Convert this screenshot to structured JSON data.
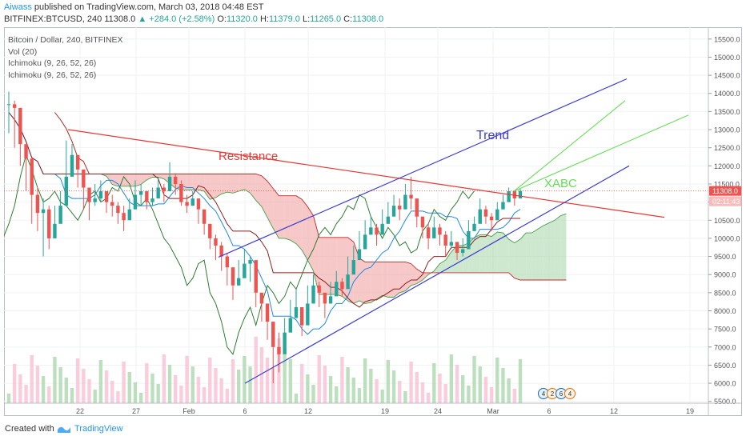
{
  "header": {
    "author": "Aiwass",
    "published": "published on TradingView.com, March 03, 2018 04:48 EST",
    "symbol": "BITFINEX:BTCUSD, 240",
    "last": "11308.0",
    "change": "+284.0 (+2.58%)",
    "o_label": "O:",
    "o": "11320.0",
    "h_label": "H:",
    "h": "11379.0",
    "l_label": "L:",
    "l": "11265.0",
    "c_label": "C:",
    "c": "11308.0"
  },
  "legend": {
    "title": "Bitcoin / Dollar, 240, BITFINEX",
    "vol": "Vol (20)",
    "ichimoku1": "Ichimoku (9, 26, 52, 26)",
    "ichimoku2": "Ichimoku (9, 26, 52, 26)"
  },
  "footer": {
    "created": "Created with",
    "brand": "TradingView"
  },
  "colors": {
    "resistance": "#e53935",
    "trend": "#3f3fd0",
    "xabc": "#66dd55",
    "up": "#26a69a",
    "down": "#ef5350",
    "kumo_bull": "#a5d6a7",
    "kumo_bear": "#ef9a9a",
    "price_label": "#ef5350"
  },
  "chart_data": {
    "type": "candlestick",
    "y_axis": {
      "range": [
        5450,
        15650
      ],
      "ticks": [
        "15500.0",
        "15000.0",
        "14500.0",
        "14000.0",
        "13500.0",
        "13000.0",
        "12500.0",
        "12000.0",
        "11500.0",
        "11000.0",
        "10500.0",
        "10000.0",
        "9500.0",
        "9000.0",
        "8500.0",
        "8000.0",
        "7500.0",
        "7000.0",
        "6500.0",
        "6000.0",
        "5500.0"
      ]
    },
    "x_axis": {
      "ticks": [
        "22",
        "27",
        "Feb",
        "6",
        "12",
        "19",
        "24",
        "Mar",
        "6",
        "12",
        "19"
      ]
    },
    "price_labels": {
      "last": "11308.0",
      "countdown": "02:11:43"
    },
    "annotations": [
      {
        "text": "Resistance",
        "kind": "line",
        "from": [
          "Jan 18",
          13000
        ],
        "to": [
          "Mar 16",
          10550
        ]
      },
      {
        "text": "Trend",
        "kind": "channel-upper",
        "from": [
          "Feb 3",
          9500
        ],
        "to": [
          "Mar 12",
          14400
        ]
      },
      {
        "text": "",
        "kind": "channel-lower",
        "from": [
          "Feb 6",
          6000
        ],
        "to": [
          "Mar 13",
          12000
        ]
      },
      {
        "text": "XABC",
        "kind": "projection",
        "from": [
          "Mar 2",
          11300
        ],
        "to": [
          "Mar 12",
          13800
        ]
      },
      {
        "text": "",
        "kind": "projection",
        "from": [
          "Mar 2",
          11300
        ],
        "to": [
          "Mar 21",
          13400
        ]
      }
    ],
    "events_badge": [
      "4",
      "2",
      "6",
      "4"
    ],
    "price_path": [
      [
        13700,
        14050,
        12900
      ],
      [
        13600,
        13800,
        12500
      ],
      [
        12600,
        12900,
        12000
      ],
      [
        12200,
        12500,
        11300
      ],
      [
        11200,
        11800,
        10400
      ],
      [
        10700,
        11400,
        10200
      ],
      [
        10800,
        11100,
        9500
      ],
      [
        10000,
        10900,
        9700
      ],
      [
        10400,
        10900,
        10200
      ],
      [
        10900,
        11300,
        10500
      ],
      [
        11700,
        12700,
        11500
      ],
      [
        12300,
        12600,
        11800
      ],
      [
        11900,
        12300,
        11400
      ],
      [
        11400,
        11800,
        10800
      ],
      [
        11000,
        11400,
        10500
      ],
      [
        11100,
        11500,
        10900
      ],
      [
        11300,
        11600,
        11000
      ],
      [
        11000,
        11300,
        10700
      ],
      [
        10900,
        11200,
        10600
      ],
      [
        10700,
        11000,
        10400
      ],
      [
        10500,
        10900,
        10200
      ],
      [
        10800,
        11100,
        10600
      ],
      [
        11200,
        11600,
        11000
      ],
      [
        11300,
        11500,
        10900
      ],
      [
        11000,
        11200,
        10800
      ],
      [
        11100,
        11400,
        10900
      ],
      [
        11400,
        11700,
        11200
      ],
      [
        11300,
        11500,
        11000
      ],
      [
        11700,
        12100,
        11500
      ],
      [
        11500,
        11800,
        11200
      ],
      [
        11000,
        11600,
        10900
      ],
      [
        10900,
        11200,
        10700
      ],
      [
        11100,
        11300,
        10900
      ],
      [
        10800,
        11100,
        10400
      ],
      [
        10400,
        10700,
        10100
      ],
      [
        10000,
        10400,
        9700
      ],
      [
        9800,
        10100,
        9400
      ],
      [
        9500,
        9900,
        9100
      ],
      [
        9200,
        9600,
        8700
      ],
      [
        8700,
        9100,
        8300
      ],
      [
        8900,
        9400,
        8700
      ],
      [
        9300,
        9700,
        9100
      ],
      [
        9400,
        9500,
        8800
      ],
      [
        8500,
        9000,
        8100
      ],
      [
        8200,
        8500,
        7700
      ],
      [
        7700,
        8100,
        7200
      ],
      [
        7000,
        7600,
        6000
      ],
      [
        6800,
        7400,
        6300
      ],
      [
        7400,
        7800,
        7000
      ],
      [
        7800,
        8300,
        7500
      ],
      [
        8100,
        8600,
        7900
      ],
      [
        7600,
        8000,
        7300
      ],
      [
        8200,
        8700,
        8000
      ],
      [
        8700,
        9000,
        8400
      ],
      [
        8500,
        8800,
        8100
      ],
      [
        8200,
        8500,
        7800
      ],
      [
        8400,
        8800,
        8200
      ],
      [
        8800,
        9100,
        8600
      ],
      [
        8600,
        8900,
        8400
      ],
      [
        9000,
        9500,
        8800
      ],
      [
        9400,
        9800,
        9200
      ],
      [
        9700,
        10200,
        9500
      ],
      [
        10100,
        10500,
        9900
      ],
      [
        10300,
        10600,
        10100
      ],
      [
        10100,
        10400,
        9800
      ],
      [
        10400,
        10800,
        10200
      ],
      [
        10600,
        11000,
        10400
      ],
      [
        10900,
        11200,
        10700
      ],
      [
        10800,
        11100,
        10500
      ],
      [
        11200,
        11500,
        11000
      ],
      [
        11100,
        11700,
        10800
      ],
      [
        10600,
        11000,
        10300
      ],
      [
        10300,
        10600,
        10000
      ],
      [
        10000,
        10400,
        9700
      ],
      [
        10300,
        10600,
        10100
      ],
      [
        10100,
        10400,
        9800
      ],
      [
        9800,
        10200,
        9500
      ],
      [
        9900,
        10200,
        9700
      ],
      [
        9600,
        9900,
        9400
      ],
      [
        9700,
        10000,
        9500
      ],
      [
        10200,
        10500,
        10000
      ],
      [
        10400,
        10600,
        10200
      ],
      [
        10800,
        11100,
        10600
      ],
      [
        10600,
        10900,
        10400
      ],
      [
        10500,
        10700,
        10200
      ],
      [
        10800,
        11000,
        10600
      ],
      [
        11000,
        11200,
        10800
      ],
      [
        11300,
        11400,
        11000
      ],
      [
        11100,
        11300,
        10900
      ],
      [
        11308,
        11379,
        11265
      ]
    ]
  }
}
